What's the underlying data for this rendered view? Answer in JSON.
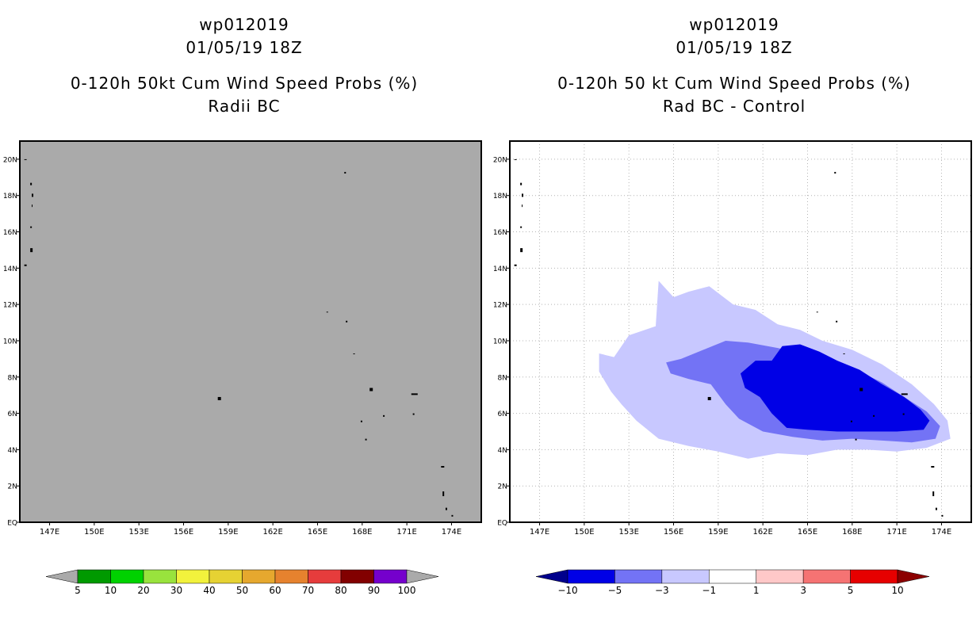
{
  "chart_data": [
    {
      "type": "heatmap",
      "storm_id": "wp012019",
      "datetime": "01/05/19 18Z",
      "title": "0-120h 50kt Cum Wind Speed Probs (%)",
      "subtitle": "Radii BC",
      "x_ticks": [
        "147E",
        "150E",
        "153E",
        "156E",
        "159E",
        "162E",
        "165E",
        "168E",
        "171E",
        "174E"
      ],
      "y_ticks": [
        "20N",
        "18N",
        "16N",
        "14N",
        "12N",
        "10N",
        "8N",
        "6N",
        "4N",
        "2N",
        "EQ"
      ],
      "xlim": [
        145,
        176
      ],
      "ylim": [
        0,
        21
      ],
      "grid": false,
      "field": "all values below 5 (no shading shown)",
      "colorbar": {
        "labels": [
          "5",
          "10",
          "20",
          "30",
          "40",
          "50",
          "60",
          "70",
          "80",
          "90",
          "100"
        ],
        "colors": [
          "#aaaaaa",
          "#009a00",
          "#00d200",
          "#99e33d",
          "#f2f23c",
          "#e6d233",
          "#e6a82e",
          "#e6822e",
          "#e63c3c",
          "#820000",
          "#7500cc",
          "#aaaaaa"
        ]
      }
    },
    {
      "type": "heatmap",
      "storm_id": "wp012019",
      "datetime": "01/05/19 18Z",
      "title": "0-120h 50 kt Cum Wind Speed Probs (%)",
      "subtitle": "Rad BC - Control",
      "x_ticks": [
        "147E",
        "150E",
        "153E",
        "156E",
        "159E",
        "162E",
        "165E",
        "168E",
        "171E",
        "174E"
      ],
      "y_ticks": [
        "20N",
        "18N",
        "16N",
        "14N",
        "12N",
        "10N",
        "8N",
        "6N",
        "4N",
        "2N",
        "EQ"
      ],
      "xlim": [
        145,
        176
      ],
      "ylim": [
        0,
        21
      ],
      "grid": true,
      "contours": [
        {
          "level": "-3 to -1",
          "color": "#c8c8ff",
          "polygon": [
            [
              151,
              9.3
            ],
            [
              152,
              9.1
            ],
            [
              153,
              10.3
            ],
            [
              154.8,
              10.8
            ],
            [
              155,
              13.3
            ],
            [
              156,
              12.4
            ],
            [
              157,
              12.7
            ],
            [
              158.4,
              13.0
            ],
            [
              160,
              12.0
            ],
            [
              161.5,
              11.7
            ],
            [
              163,
              10.9
            ],
            [
              164.5,
              10.6
            ],
            [
              166,
              10.0
            ],
            [
              168,
              9.5
            ],
            [
              170,
              8.7
            ],
            [
              172,
              7.6
            ],
            [
              173.5,
              6.5
            ],
            [
              174.4,
              5.6
            ],
            [
              174.6,
              4.6
            ],
            [
              173,
              4.1
            ],
            [
              171,
              3.9
            ],
            [
              169,
              4.0
            ],
            [
              167,
              4.0
            ],
            [
              165,
              3.7
            ],
            [
              163,
              3.8
            ],
            [
              161,
              3.5
            ],
            [
              159,
              3.9
            ],
            [
              157,
              4.2
            ],
            [
              155,
              4.6
            ],
            [
              153.5,
              5.6
            ],
            [
              152.5,
              6.5
            ],
            [
              151.8,
              7.2
            ],
            [
              151,
              8.3
            ]
          ]
        },
        {
          "level": "-5 to -3",
          "color": "#7373f5",
          "polygon": [
            [
              155.5,
              8.8
            ],
            [
              156.5,
              9.0
            ],
            [
              158,
              9.5
            ],
            [
              159.5,
              10.0
            ],
            [
              161,
              9.9
            ],
            [
              163,
              9.6
            ],
            [
              164.5,
              9.3
            ],
            [
              166,
              9.1
            ],
            [
              168,
              8.5
            ],
            [
              170,
              7.7
            ],
            [
              171.5,
              6.9
            ],
            [
              173,
              6.1
            ],
            [
              173.9,
              5.3
            ],
            [
              173.6,
              4.6
            ],
            [
              172,
              4.4
            ],
            [
              170,
              4.5
            ],
            [
              168,
              4.6
            ],
            [
              166,
              4.5
            ],
            [
              164,
              4.7
            ],
            [
              162,
              5.0
            ],
            [
              160.4,
              5.7
            ],
            [
              159.5,
              6.5
            ],
            [
              158.5,
              7.6
            ],
            [
              157,
              7.9
            ],
            [
              155.8,
              8.2
            ]
          ]
        },
        {
          "level": "-10 to -5",
          "color": "#0000e6",
          "polygon": [
            [
              160.5,
              8.2
            ],
            [
              161.5,
              8.9
            ],
            [
              162.6,
              8.9
            ],
            [
              163.3,
              9.7
            ],
            [
              164.5,
              9.8
            ],
            [
              165.8,
              9.4
            ],
            [
              167,
              8.9
            ],
            [
              168.5,
              8.4
            ],
            [
              170,
              7.6
            ],
            [
              171.5,
              6.9
            ],
            [
              172.6,
              6.2
            ],
            [
              173.2,
              5.6
            ],
            [
              172.8,
              5.1
            ],
            [
              171,
              5.0
            ],
            [
              169,
              5.0
            ],
            [
              167,
              5.0
            ],
            [
              165,
              5.1
            ],
            [
              163.6,
              5.2
            ],
            [
              162.6,
              6.0
            ],
            [
              161.8,
              6.9
            ],
            [
              160.8,
              7.4
            ]
          ]
        }
      ],
      "colorbar": {
        "labels": [
          "-10",
          "-5",
          "-3",
          "-1",
          "1",
          "3",
          "5",
          "10"
        ],
        "colors": [
          "#00008c",
          "#0000e6",
          "#7373f5",
          "#c8c8ff",
          "#ffffff",
          "#ffc8c8",
          "#f57373",
          "#e60000",
          "#8c0000"
        ]
      }
    }
  ]
}
